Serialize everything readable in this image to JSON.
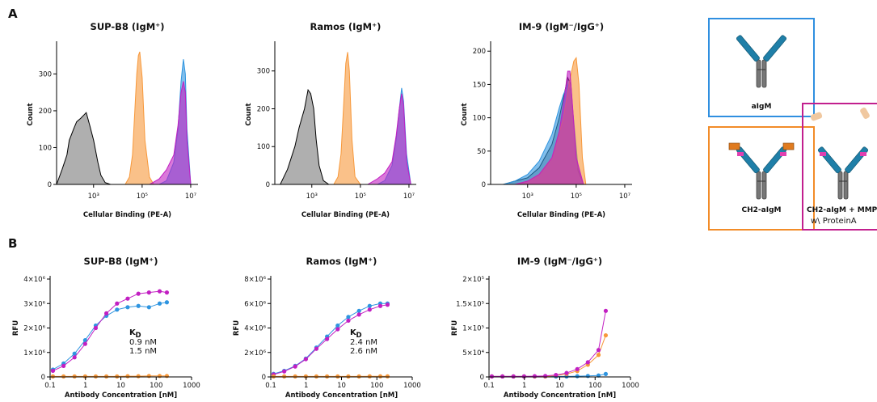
{
  "panels": [
    "A",
    "B"
  ],
  "diagram": {
    "boxes": [
      {
        "label": "aIgM"
      },
      {
        "label": "CH2-aIgM"
      },
      {
        "label": "CH2-aIgM + MMP-",
        "sublabel": "w\\ ProteinA"
      }
    ]
  },
  "chart_data": [
    {
      "type": "area",
      "title": "SUP-B8 (IgM⁺)",
      "xlabel": "Cellular Binding (PE-A)",
      "ylabel": "Count",
      "xscale": "log",
      "opacity": 0.6,
      "xlim": [
        30,
        20000000
      ],
      "ylim": [
        0,
        380
      ],
      "xticks": [
        {
          "value": 1000,
          "label": "10³"
        },
        {
          "value": 100000,
          "label": "10⁵"
        },
        {
          "value": 10000000,
          "label": "10⁷"
        }
      ],
      "yticks": [
        0,
        100,
        200,
        300
      ],
      "series": [
        {
          "color": "#7a7a7a",
          "x": [
            30,
            50,
            80,
            100,
            150,
            200,
            300,
            500,
            700,
            1000,
            1500,
            2000,
            3000,
            5000
          ],
          "values": [
            0,
            40,
            80,
            120,
            150,
            170,
            180,
            195,
            160,
            120,
            60,
            25,
            5,
            0
          ]
        },
        {
          "color": "#f7983a",
          "x": [
            20000,
            30000,
            40000,
            50000,
            60000,
            70000,
            80000,
            100000,
            130000,
            200000,
            300000
          ],
          "values": [
            0,
            20,
            80,
            200,
            300,
            350,
            360,
            290,
            120,
            20,
            0
          ]
        },
        {
          "color": "#2f95e0",
          "x": [
            500000,
            1000000,
            2000000,
            3000000,
            4000000,
            5000000,
            6000000,
            7000000,
            10000000
          ],
          "values": [
            0,
            10,
            60,
            150,
            280,
            340,
            300,
            150,
            0
          ]
        },
        {
          "color": "#c21fc2",
          "x": [
            200000,
            500000,
            1000000,
            2000000,
            3000000,
            4000000,
            5000000,
            6000000,
            7000000,
            10000000
          ],
          "values": [
            0,
            15,
            40,
            80,
            160,
            250,
            280,
            250,
            120,
            0
          ]
        }
      ]
    },
    {
      "type": "area",
      "title": "Ramos (IgM⁺)",
      "xlabel": "Cellular Binding (PE-A)",
      "ylabel": "Count",
      "xscale": "log",
      "opacity": 0.6,
      "xlim": [
        30,
        20000000
      ],
      "ylim": [
        0,
        370
      ],
      "xticks": [
        {
          "value": 1000,
          "label": "10³"
        },
        {
          "value": 100000,
          "label": "10⁵"
        },
        {
          "value": 10000000,
          "label": "10⁷"
        }
      ],
      "yticks": [
        0,
        100,
        200,
        300
      ],
      "series": [
        {
          "color": "#7a7a7a",
          "x": [
            50,
            100,
            200,
            300,
            500,
            700,
            900,
            1200,
            1500,
            2000,
            3000,
            5000
          ],
          "values": [
            0,
            40,
            100,
            150,
            200,
            250,
            240,
            200,
            120,
            50,
            10,
            0
          ]
        },
        {
          "color": "#f7983a",
          "x": [
            8000,
            12000,
            16000,
            20000,
            25000,
            30000,
            35000,
            45000,
            60000,
            100000
          ],
          "values": [
            0,
            20,
            80,
            200,
            320,
            350,
            300,
            120,
            20,
            0
          ]
        },
        {
          "color": "#2f95e0",
          "x": [
            500000,
            1000000,
            2000000,
            3000000,
            4000000,
            5000000,
            6000000,
            8000000,
            12000000
          ],
          "values": [
            0,
            10,
            50,
            120,
            200,
            255,
            220,
            80,
            0
          ]
        },
        {
          "color": "#c21fc2",
          "x": [
            200000,
            500000,
            1000000,
            2000000,
            3000000,
            4000000,
            5000000,
            6000000,
            8000000,
            12000000
          ],
          "values": [
            0,
            15,
            30,
            60,
            130,
            200,
            240,
            210,
            60,
            0
          ]
        }
      ]
    },
    {
      "type": "area",
      "title": "IM-9 (IgM⁻/IgG⁺)",
      "xlabel": "Cellular Binding (PE-A)",
      "ylabel": "Count",
      "xscale": "log",
      "opacity": 0.6,
      "xlim": [
        30,
        20000000
      ],
      "ylim": [
        0,
        210
      ],
      "xticks": [
        {
          "value": 1000,
          "label": "10³"
        },
        {
          "value": 100000,
          "label": "10⁵"
        },
        {
          "value": 10000000,
          "label": "10⁷"
        }
      ],
      "yticks": [
        0,
        50,
        100,
        150,
        200
      ],
      "series": [
        {
          "color": "#7a7a7a",
          "x": [
            100,
            300,
            1000,
            3000,
            10000,
            20000,
            30000,
            45000,
            60000,
            80000,
            120000,
            200000
          ],
          "values": [
            0,
            5,
            10,
            25,
            60,
            100,
            130,
            160,
            150,
            90,
            20,
            0
          ]
        },
        {
          "color": "#2f95e0",
          "x": [
            100,
            300,
            1000,
            3000,
            10000,
            20000,
            30000,
            45000,
            60000,
            80000,
            120000,
            200000
          ],
          "values": [
            0,
            5,
            15,
            35,
            75,
            115,
            135,
            150,
            140,
            95,
            25,
            0
          ]
        },
        {
          "color": "#f7983a",
          "x": [
            300,
            1000,
            3000,
            10000,
            30000,
            50000,
            80000,
            100000,
            130000,
            180000,
            250000
          ],
          "values": [
            0,
            5,
            15,
            40,
            100,
            150,
            185,
            190,
            150,
            40,
            0
          ]
        },
        {
          "color": "#c21fc2",
          "x": [
            300,
            1000,
            3000,
            10000,
            20000,
            30000,
            45000,
            55000,
            70000,
            100000,
            200000
          ],
          "values": [
            0,
            5,
            15,
            40,
            80,
            120,
            170,
            170,
            120,
            40,
            0
          ]
        }
      ]
    },
    {
      "type": "line",
      "title": "SUP-B8 (IgM⁺)",
      "xlabel": "Antibody Concentration [nM]",
      "ylabel": "RFU",
      "xscale": "log",
      "xlim": [
        0.1,
        1000
      ],
      "ylim": [
        0,
        4000000
      ],
      "xticks": [
        0.1,
        1,
        10,
        100,
        1000
      ],
      "yticks": [
        0,
        {
          "value": 1000000,
          "label": "1×10⁶"
        },
        {
          "value": 2000000,
          "label": "2×10⁶"
        },
        {
          "value": 3000000,
          "label": "3×10⁶"
        },
        {
          "value": 4000000,
          "label": "4×10⁶"
        }
      ],
      "kd": {
        "symbol": "K",
        "subscript": "D"
      },
      "kd_values": [
        {
          "text": "0.9 nM",
          "color": "#2f95e0"
        },
        {
          "text": "1.5 nM",
          "color": "#c21fc2"
        }
      ],
      "series": [
        {
          "color": "#2f95e0",
          "x": [
            0.12,
            0.24,
            0.49,
            0.98,
            1.95,
            3.9,
            7.8,
            15.6,
            31.3,
            62.5,
            125,
            200
          ],
          "values": [
            300000,
            550000,
            950000,
            1500000,
            2100000,
            2500000,
            2750000,
            2850000,
            2900000,
            2850000,
            3000000,
            3050000
          ]
        },
        {
          "color": "#c21fc2",
          "x": [
            0.12,
            0.24,
            0.49,
            0.98,
            1.95,
            3.9,
            7.8,
            15.6,
            31.3,
            62.5,
            125,
            200
          ],
          "values": [
            250000,
            450000,
            800000,
            1350000,
            2000000,
            2600000,
            3000000,
            3200000,
            3400000,
            3450000,
            3500000,
            3450000
          ]
        },
        {
          "color": "#f7983a",
          "x": [
            0.12,
            0.24,
            0.49,
            0.98,
            1.95,
            3.9,
            7.8,
            15.6,
            31.3,
            62.5,
            125,
            200
          ],
          "values": [
            20000,
            20000,
            20000,
            20000,
            20000,
            20000,
            20000,
            30000,
            30000,
            40000,
            40000,
            40000
          ]
        }
      ]
    },
    {
      "type": "line",
      "title": "Ramos (IgM⁺)",
      "xlabel": "Antibody Concentration [nM]",
      "ylabel": "RFU",
      "xscale": "log",
      "xlim": [
        0.1,
        1000
      ],
      "ylim": [
        0,
        8000000
      ],
      "xticks": [
        0.1,
        1,
        10,
        100,
        1000
      ],
      "yticks": [
        0,
        {
          "value": 2000000,
          "label": "2×10⁶"
        },
        {
          "value": 4000000,
          "label": "4×10⁶"
        },
        {
          "value": 6000000,
          "label": "6×10⁶"
        },
        {
          "value": 8000000,
          "label": "8×10⁶"
        }
      ],
      "kd": {
        "symbol": "K",
        "subscript": "D"
      },
      "kd_values": [
        {
          "text": "2.4 nM",
          "color": "#2f95e0"
        },
        {
          "text": "2.6 nM",
          "color": "#c21fc2"
        }
      ],
      "series": [
        {
          "color": "#2f95e0",
          "x": [
            0.12,
            0.24,
            0.49,
            0.98,
            1.95,
            3.9,
            7.8,
            15.6,
            31.3,
            62.5,
            125,
            200
          ],
          "values": [
            250000,
            500000,
            900000,
            1500000,
            2400000,
            3300000,
            4200000,
            4900000,
            5400000,
            5800000,
            6000000,
            6000000
          ]
        },
        {
          "color": "#c21fc2",
          "x": [
            0.12,
            0.24,
            0.49,
            0.98,
            1.95,
            3.9,
            7.8,
            15.6,
            31.3,
            62.5,
            125,
            200
          ],
          "values": [
            200000,
            450000,
            850000,
            1450000,
            2300000,
            3100000,
            3900000,
            4600000,
            5100000,
            5500000,
            5800000,
            5900000
          ]
        },
        {
          "color": "#f7983a",
          "x": [
            0.12,
            0.24,
            0.49,
            0.98,
            1.95,
            3.9,
            7.8,
            15.6,
            31.3,
            62.5,
            125,
            200
          ],
          "values": [
            40000,
            40000,
            40000,
            40000,
            40000,
            40000,
            40000,
            40000,
            40000,
            50000,
            50000,
            50000
          ]
        }
      ]
    },
    {
      "type": "line",
      "title": "IM-9 (IgM⁻/IgG⁺)",
      "xlabel": "Antibody Concentration [nM]",
      "ylabel": "RFU",
      "xscale": "log",
      "xlim": [
        0.1,
        1000
      ],
      "ylim": [
        0,
        200000
      ],
      "xticks": [
        0.1,
        1,
        10,
        100,
        1000
      ],
      "yticks": [
        0,
        {
          "value": 50000,
          "label": "5×10⁴"
        },
        {
          "value": 100000,
          "label": "1×10⁵"
        },
        {
          "value": 150000,
          "label": "1.5×10⁵"
        },
        {
          "value": 200000,
          "label": "2×10⁵"
        }
      ],
      "series": [
        {
          "color": "#2f95e0",
          "x": [
            0.12,
            0.24,
            0.49,
            0.98,
            1.95,
            3.9,
            7.8,
            15.6,
            31.3,
            62.5,
            125,
            200
          ],
          "values": [
            1000,
            1000,
            1000,
            1000,
            1000,
            1000,
            1000,
            1000,
            1500,
            2000,
            3000,
            6000
          ]
        },
        {
          "color": "#f7983a",
          "x": [
            0.12,
            0.24,
            0.49,
            0.98,
            1.95,
            3.9,
            7.8,
            15.6,
            31.3,
            62.5,
            125,
            200
          ],
          "values": [
            1000,
            1000,
            1000,
            1000,
            1000,
            1000,
            3000,
            6000,
            12000,
            25000,
            45000,
            85000
          ]
        },
        {
          "color": "#c21fc2",
          "x": [
            0.12,
            0.24,
            0.49,
            0.98,
            1.95,
            3.9,
            7.8,
            15.6,
            31.3,
            62.5,
            125,
            200
          ],
          "values": [
            1000,
            1000,
            1000,
            1000,
            1500,
            2000,
            4000,
            8000,
            16000,
            30000,
            55000,
            135000
          ]
        }
      ]
    }
  ]
}
